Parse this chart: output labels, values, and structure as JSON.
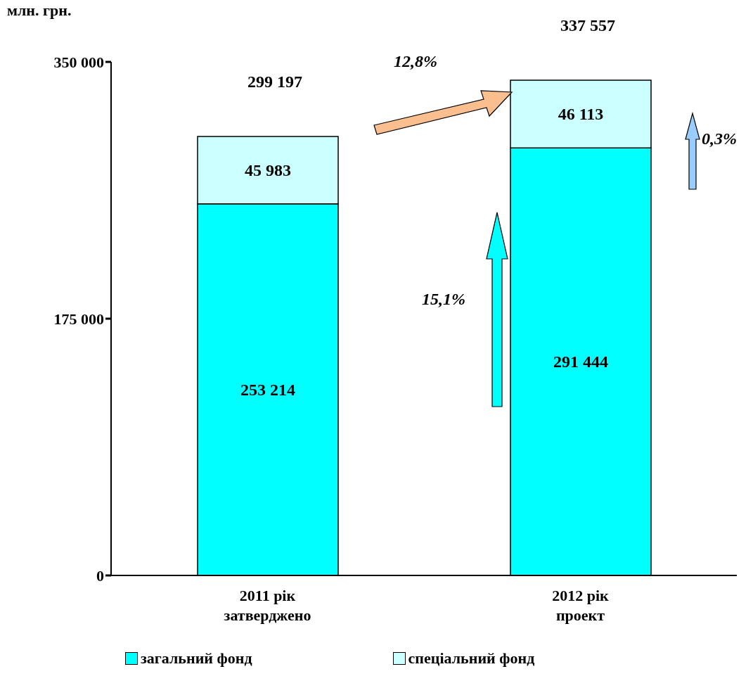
{
  "chart_data": {
    "type": "bar",
    "stacked": true,
    "ylabel": "млн. грн.",
    "categories": [
      "2011 рік затверджено",
      "2012 рік проект"
    ],
    "series": [
      {
        "name": "загальний фонд",
        "color": "#00ffff",
        "values": [
          253214,
          291444
        ],
        "value_labels": [
          "253 214",
          "291 444"
        ]
      },
      {
        "name": "спеціальний фонд",
        "color": "#ccffff",
        "values": [
          45983,
          46113
        ],
        "value_labels": [
          "45 983",
          "46 113"
        ]
      }
    ],
    "totals": [
      "299 197",
      "337 557"
    ],
    "ylim": [
      0,
      350000
    ],
    "yticks": [
      {
        "value": 0,
        "label": "0"
      },
      {
        "value": 175000,
        "label": "175 000"
      },
      {
        "value": 350000,
        "label": "350 000"
      }
    ],
    "legend": "bottom",
    "annotations": [
      "12,8%",
      "15,1%",
      "0,3%"
    ]
  }
}
